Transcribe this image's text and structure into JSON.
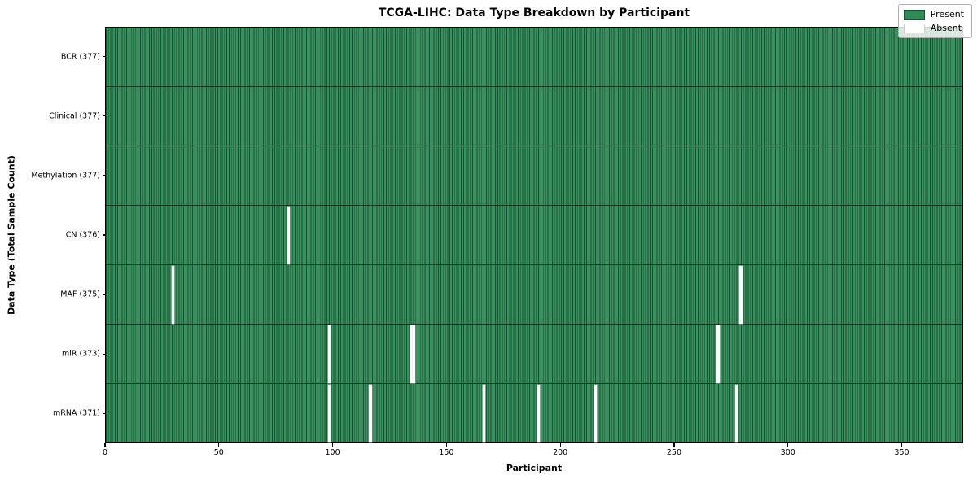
{
  "chart_data": {
    "type": "heatmap",
    "title": "TCGA-LIHC: Data Type Breakdown by Participant",
    "xlabel": "Participant",
    "ylabel": "Data Type (Total Sample Count)",
    "n_participants": 377,
    "x_range": [
      0,
      377
    ],
    "x_ticks": [
      0,
      50,
      100,
      150,
      200,
      250,
      300,
      350
    ],
    "rows": [
      {
        "data_type": "BCR",
        "label": "BCR (377)",
        "total": 377,
        "absent_participants": []
      },
      {
        "data_type": "Clinical",
        "label": "Clinical (377)",
        "total": 377,
        "absent_participants": []
      },
      {
        "data_type": "Methylation",
        "label": "Methylation (377)",
        "total": 377,
        "absent_participants": []
      },
      {
        "data_type": "CN",
        "label": "CN (376)",
        "total": 376,
        "absent_participants": [
          80
        ]
      },
      {
        "data_type": "MAF",
        "label": "MAF (375)",
        "total": 375,
        "absent_participants": [
          29,
          279
        ]
      },
      {
        "data_type": "miR",
        "label": "miR (373)",
        "total": 373,
        "absent_participants": [
          98,
          134,
          135,
          269
        ]
      },
      {
        "data_type": "mRNA",
        "label": "mRNA (371)",
        "total": 371,
        "absent_participants": [
          98,
          116,
          166,
          190,
          215,
          277
        ]
      }
    ],
    "legend": [
      {
        "label": "Present",
        "color": "#2e8b57",
        "edge": "#1d5134"
      },
      {
        "label": "Absent",
        "color": "#ffffff",
        "edge": "#d0d0d0"
      }
    ],
    "legend_position": "upper right",
    "colors": {
      "present_fill": "#37915f",
      "cell_edge": "#1d5134",
      "row_divider": "#143723",
      "absent_fill": "#ffffff",
      "plot_border": "#000000",
      "background": "#ffffff"
    },
    "grid": "cell-edges"
  }
}
